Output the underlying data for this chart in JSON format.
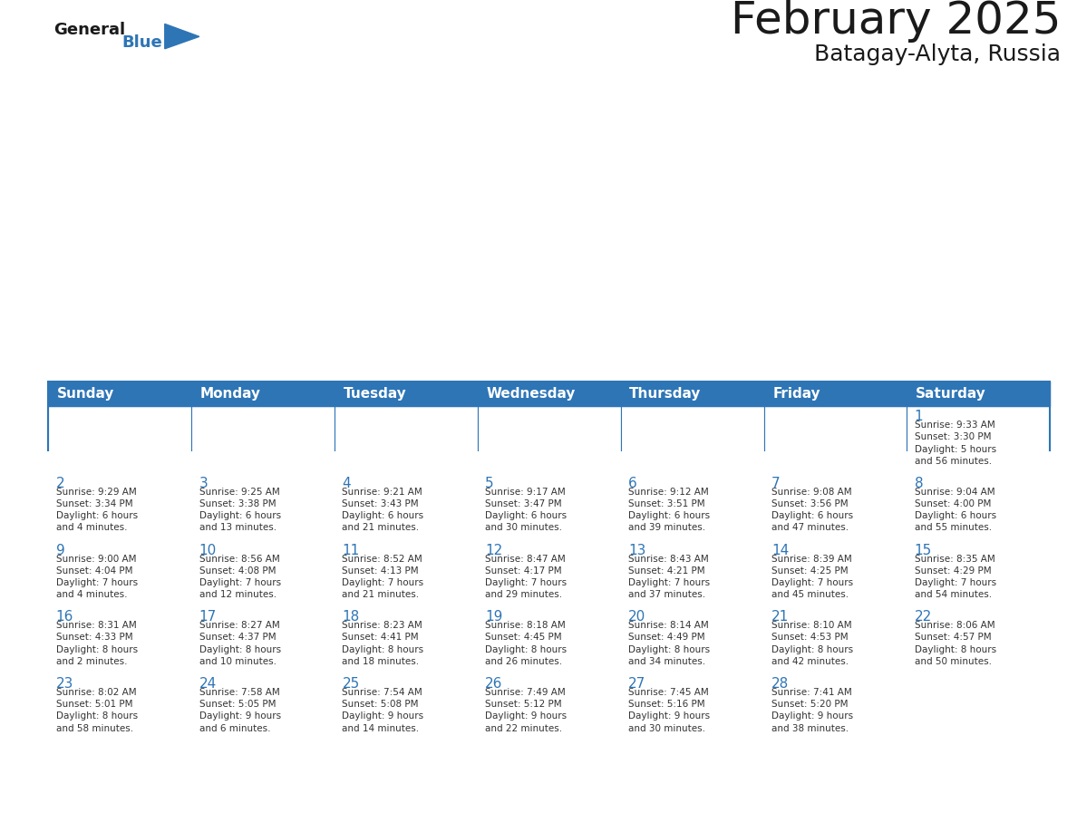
{
  "title": "February 2025",
  "subtitle": "Batagay-Alyta, Russia",
  "header_bg_color": "#2E75B6",
  "header_text_color": "#FFFFFF",
  "cell_bg_color": "#FFFFFF",
  "border_color": "#2E75B6",
  "day_headers": [
    "Sunday",
    "Monday",
    "Tuesday",
    "Wednesday",
    "Thursday",
    "Friday",
    "Saturday"
  ],
  "title_color": "#1a1a1a",
  "subtitle_color": "#1a1a1a",
  "day_number_color": "#2E75B6",
  "cell_text_color": "#333333",
  "logo_general_color": "#1a1a1a",
  "logo_blue_color": "#2E75B6",
  "weeks": [
    [
      {
        "day": null,
        "info": null
      },
      {
        "day": null,
        "info": null
      },
      {
        "day": null,
        "info": null
      },
      {
        "day": null,
        "info": null
      },
      {
        "day": null,
        "info": null
      },
      {
        "day": null,
        "info": null
      },
      {
        "day": 1,
        "info": "Sunrise: 9:33 AM\nSunset: 3:30 PM\nDaylight: 5 hours\nand 56 minutes."
      }
    ],
    [
      {
        "day": 2,
        "info": "Sunrise: 9:29 AM\nSunset: 3:34 PM\nDaylight: 6 hours\nand 4 minutes."
      },
      {
        "day": 3,
        "info": "Sunrise: 9:25 AM\nSunset: 3:38 PM\nDaylight: 6 hours\nand 13 minutes."
      },
      {
        "day": 4,
        "info": "Sunrise: 9:21 AM\nSunset: 3:43 PM\nDaylight: 6 hours\nand 21 minutes."
      },
      {
        "day": 5,
        "info": "Sunrise: 9:17 AM\nSunset: 3:47 PM\nDaylight: 6 hours\nand 30 minutes."
      },
      {
        "day": 6,
        "info": "Sunrise: 9:12 AM\nSunset: 3:51 PM\nDaylight: 6 hours\nand 39 minutes."
      },
      {
        "day": 7,
        "info": "Sunrise: 9:08 AM\nSunset: 3:56 PM\nDaylight: 6 hours\nand 47 minutes."
      },
      {
        "day": 8,
        "info": "Sunrise: 9:04 AM\nSunset: 4:00 PM\nDaylight: 6 hours\nand 55 minutes."
      }
    ],
    [
      {
        "day": 9,
        "info": "Sunrise: 9:00 AM\nSunset: 4:04 PM\nDaylight: 7 hours\nand 4 minutes."
      },
      {
        "day": 10,
        "info": "Sunrise: 8:56 AM\nSunset: 4:08 PM\nDaylight: 7 hours\nand 12 minutes."
      },
      {
        "day": 11,
        "info": "Sunrise: 8:52 AM\nSunset: 4:13 PM\nDaylight: 7 hours\nand 21 minutes."
      },
      {
        "day": 12,
        "info": "Sunrise: 8:47 AM\nSunset: 4:17 PM\nDaylight: 7 hours\nand 29 minutes."
      },
      {
        "day": 13,
        "info": "Sunrise: 8:43 AM\nSunset: 4:21 PM\nDaylight: 7 hours\nand 37 minutes."
      },
      {
        "day": 14,
        "info": "Sunrise: 8:39 AM\nSunset: 4:25 PM\nDaylight: 7 hours\nand 45 minutes."
      },
      {
        "day": 15,
        "info": "Sunrise: 8:35 AM\nSunset: 4:29 PM\nDaylight: 7 hours\nand 54 minutes."
      }
    ],
    [
      {
        "day": 16,
        "info": "Sunrise: 8:31 AM\nSunset: 4:33 PM\nDaylight: 8 hours\nand 2 minutes."
      },
      {
        "day": 17,
        "info": "Sunrise: 8:27 AM\nSunset: 4:37 PM\nDaylight: 8 hours\nand 10 minutes."
      },
      {
        "day": 18,
        "info": "Sunrise: 8:23 AM\nSunset: 4:41 PM\nDaylight: 8 hours\nand 18 minutes."
      },
      {
        "day": 19,
        "info": "Sunrise: 8:18 AM\nSunset: 4:45 PM\nDaylight: 8 hours\nand 26 minutes."
      },
      {
        "day": 20,
        "info": "Sunrise: 8:14 AM\nSunset: 4:49 PM\nDaylight: 8 hours\nand 34 minutes."
      },
      {
        "day": 21,
        "info": "Sunrise: 8:10 AM\nSunset: 4:53 PM\nDaylight: 8 hours\nand 42 minutes."
      },
      {
        "day": 22,
        "info": "Sunrise: 8:06 AM\nSunset: 4:57 PM\nDaylight: 8 hours\nand 50 minutes."
      }
    ],
    [
      {
        "day": 23,
        "info": "Sunrise: 8:02 AM\nSunset: 5:01 PM\nDaylight: 8 hours\nand 58 minutes."
      },
      {
        "day": 24,
        "info": "Sunrise: 7:58 AM\nSunset: 5:05 PM\nDaylight: 9 hours\nand 6 minutes."
      },
      {
        "day": 25,
        "info": "Sunrise: 7:54 AM\nSunset: 5:08 PM\nDaylight: 9 hours\nand 14 minutes."
      },
      {
        "day": 26,
        "info": "Sunrise: 7:49 AM\nSunset: 5:12 PM\nDaylight: 9 hours\nand 22 minutes."
      },
      {
        "day": 27,
        "info": "Sunrise: 7:45 AM\nSunset: 5:16 PM\nDaylight: 9 hours\nand 30 minutes."
      },
      {
        "day": 28,
        "info": "Sunrise: 7:41 AM\nSunset: 5:20 PM\nDaylight: 9 hours\nand 38 minutes."
      },
      {
        "day": null,
        "info": null
      }
    ]
  ]
}
